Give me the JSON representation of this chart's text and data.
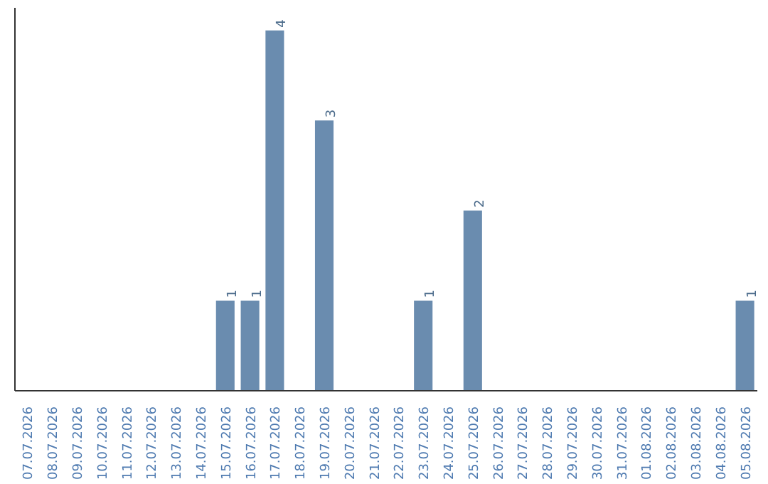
{
  "chart_data": {
    "type": "bar",
    "categories": [
      "07.07.2026",
      "08.07.2026",
      "09.07.2026",
      "10.07.2026",
      "11.07.2026",
      "12.07.2026",
      "13.07.2026",
      "14.07.2026",
      "15.07.2026",
      "16.07.2026",
      "17.07.2026",
      "18.07.2026",
      "19.07.2026",
      "20.07.2026",
      "21.07.2026",
      "22.07.2026",
      "23.07.2026",
      "24.07.2026",
      "25.07.2026",
      "26.07.2026",
      "27.07.2026",
      "28.07.2026",
      "29.07.2026",
      "30.07.2026",
      "31.07.2026",
      "01.08.2026",
      "02.08.2026",
      "03.08.2026",
      "04.08.2026",
      "05.08.2026"
    ],
    "values": [
      0,
      0,
      0,
      0,
      0,
      0,
      0,
      0,
      1,
      1,
      4,
      0,
      3,
      0,
      0,
      0,
      1,
      0,
      2,
      0,
      0,
      0,
      0,
      0,
      0,
      0,
      0,
      0,
      0,
      1
    ],
    "value_labels": [
      null,
      null,
      null,
      null,
      null,
      null,
      null,
      null,
      "1",
      "1",
      "4",
      null,
      "3",
      null,
      null,
      null,
      "1",
      null,
      "2",
      null,
      null,
      null,
      null,
      null,
      null,
      null,
      null,
      null,
      null,
      "1"
    ],
    "color": "#6a8caf",
    "ylim": [
      0,
      4.25
    ],
    "tick_labels": "x",
    "grid": false
  }
}
